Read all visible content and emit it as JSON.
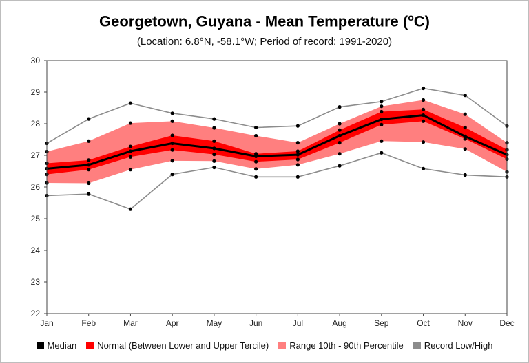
{
  "chart_data": {
    "type": "line",
    "title": "Georgetown, Guyana - Mean Temperature (",
    "title_sup": "o",
    "title_suffix": "C)",
    "subtitle": "(Location: 6.8°N, -58.1°W; Period of record: 1991-2020)",
    "categories": [
      "Jan",
      "Feb",
      "Mar",
      "Apr",
      "May",
      "Jun",
      "Jul",
      "Aug",
      "Sep",
      "Oct",
      "Nov",
      "Dec"
    ],
    "ylim": [
      22,
      30
    ],
    "yticks": [
      22,
      23,
      24,
      25,
      26,
      27,
      28,
      29,
      30
    ],
    "grid": false,
    "legend_position": "bottom",
    "series": [
      {
        "name": "Median",
        "values": [
          26.58,
          26.7,
          27.13,
          27.38,
          27.22,
          26.97,
          27.02,
          27.62,
          28.14,
          28.27,
          27.6,
          27.02
        ]
      },
      {
        "name": "Normal (Between Lower and Upper Tercile)",
        "lower": [
          26.4,
          26.55,
          26.95,
          27.17,
          27.03,
          26.8,
          26.87,
          27.4,
          27.97,
          28.08,
          27.52,
          26.88
        ],
        "upper": [
          26.75,
          26.85,
          27.28,
          27.63,
          27.45,
          27.05,
          27.13,
          27.8,
          28.38,
          28.45,
          27.88,
          27.18
        ]
      },
      {
        "name": "Range 10th - 90th Percentile",
        "lower": [
          26.13,
          26.12,
          26.55,
          26.83,
          26.82,
          26.57,
          26.7,
          27.05,
          27.45,
          27.42,
          27.2,
          26.48
        ],
        "upper": [
          27.12,
          27.45,
          28.02,
          28.08,
          27.87,
          27.62,
          27.4,
          28.0,
          28.55,
          28.75,
          28.3,
          27.4
        ]
      },
      {
        "name": "Record Low/High",
        "low": [
          25.73,
          25.78,
          25.3,
          26.4,
          26.62,
          26.32,
          26.32,
          26.67,
          27.08,
          26.58,
          26.38,
          26.32
        ],
        "high": [
          27.38,
          28.15,
          28.65,
          28.33,
          28.15,
          27.88,
          27.93,
          28.53,
          28.7,
          29.12,
          28.9,
          27.93
        ]
      }
    ],
    "colors": {
      "median": "#000000",
      "normal": "#ff0000",
      "range": "#ff7f7f",
      "record": "#8c8c8c",
      "axis": "#444444"
    }
  }
}
